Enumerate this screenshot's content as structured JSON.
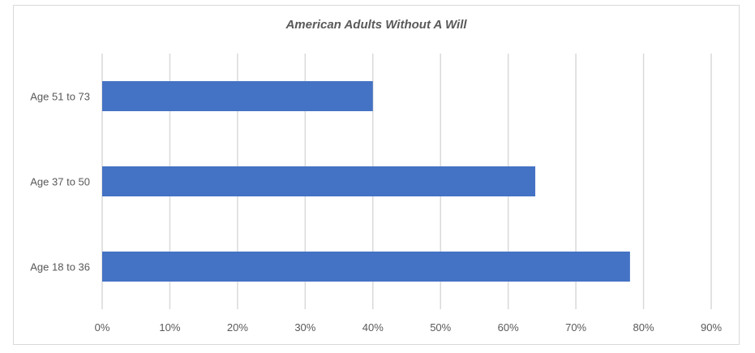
{
  "chart_data": {
    "type": "bar",
    "orientation": "horizontal",
    "title": "American Adults Without A Will",
    "categories": [
      "Age 51 to 73",
      "Age 37 to 50",
      "Age 18 to 36"
    ],
    "values": [
      40,
      64,
      78
    ],
    "xlim": [
      0,
      90
    ],
    "x_ticks": [
      "0%",
      "10%",
      "20%",
      "30%",
      "40%",
      "50%",
      "60%",
      "70%",
      "80%",
      "90%"
    ],
    "grid": true,
    "legend": "none",
    "bar_color": "#4472c4",
    "grid_color": "#d9d9d9"
  }
}
